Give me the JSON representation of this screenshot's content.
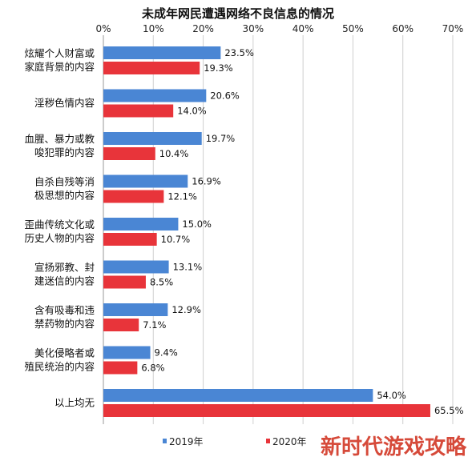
{
  "chart_data": {
    "type": "bar",
    "orientation": "horizontal",
    "title": "未成年网民遭遇网络不良信息的情况",
    "x_axis": {
      "position": "top",
      "range": [
        0,
        70
      ],
      "ticks": [
        "0%",
        "10%",
        "20%",
        "30%",
        "40%",
        "50%",
        "60%",
        "70%"
      ],
      "tick_values": [
        0,
        10,
        20,
        30,
        40,
        50,
        60,
        70
      ],
      "grid": true
    },
    "categories": [
      [
        "炫耀个人财富或",
        "家庭背景的内容"
      ],
      [
        "淫秽色情内容"
      ],
      [
        "血腥、暴力或教",
        "唆犯罪的内容"
      ],
      [
        "自杀自残等消",
        "极思想的内容"
      ],
      [
        "歪曲传统文化或",
        "历史人物的内容"
      ],
      [
        "宣扬邪教、封",
        "建迷信的内容"
      ],
      [
        "含有吸毒和违",
        "禁药物的内容"
      ],
      [
        "美化侵略者或",
        "殖民统治的内容"
      ],
      [
        "以上均无"
      ]
    ],
    "series": [
      {
        "name": "2019年",
        "color": "#4a86d4",
        "values": [
          23.5,
          20.6,
          19.7,
          16.9,
          15.0,
          13.1,
          12.9,
          9.4,
          54.0
        ],
        "labels": [
          "23.5%",
          "20.6%",
          "19.7%",
          "16.9%",
          "15.0%",
          "13.1%",
          "12.9%",
          "9.4%",
          "54.0%"
        ]
      },
      {
        "name": "2020年",
        "color": "#e8343a",
        "values": [
          19.3,
          14.0,
          10.4,
          12.1,
          10.7,
          8.5,
          7.1,
          6.8,
          65.5
        ],
        "labels": [
          "19.3%",
          "14.0%",
          "10.4%",
          "12.1%",
          "10.7%",
          "8.5%",
          "7.1%",
          "6.8%",
          "65.5%"
        ]
      }
    ],
    "legend": {
      "placement": "bottom"
    }
  },
  "watermark": {
    "text": "新时代游戏攻略",
    "color": "#d64a3a"
  }
}
